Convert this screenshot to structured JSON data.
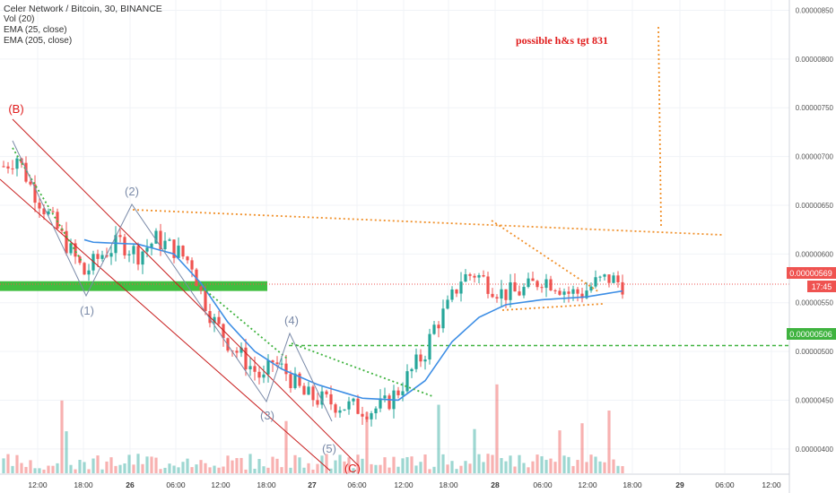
{
  "legend": {
    "title": "Celer Network / Bitcoin, 30, BINANCE",
    "vol": "Vol (20)",
    "ema_short": "EMA (25, close)",
    "ema_long": "EMA (205, close)"
  },
  "annotation_text": "possible h&s tgt 831",
  "price_badge": "0.00000569",
  "countdown_badge": "17:45",
  "support_badge": "0.00000506",
  "colors": {
    "up": "#26a69a",
    "down": "#ef5350",
    "ema": "#3d8ee5",
    "orange": "#f0902a",
    "green_dash": "#3fb33f",
    "red_line": "#c81e1e",
    "wave": "#7a8aa8",
    "zone": "#1fb31f",
    "annotation": "#e01b1b"
  },
  "chart_data": {
    "type": "candlestick",
    "title": "Celer Network / Bitcoin, 30, BINANCE",
    "y_ticks": [
      "0.00000850",
      "0.00000800",
      "0.00000750",
      "0.00000700",
      "0.00000650",
      "0.00000600",
      "0.00000550",
      "0.00000500",
      "0.00000450",
      "0.00000400"
    ],
    "x_ticks": [
      "12:00",
      "18:00",
      "26",
      "06:00",
      "12:00",
      "18:00",
      "27",
      "06:00",
      "12:00",
      "18:00",
      "28",
      "06:00",
      "12:00",
      "18:00",
      "29",
      "06:00",
      "12:00"
    ],
    "ylim": [
      3.75e-06,
      8.55e-06
    ],
    "last_price": 5.69e-06,
    "support_level": 5.06e-06,
    "resistance_zone": [
      5.62e-06,
      5.72e-06
    ],
    "ohlc_anchors": [
      [
        0,
        6.9e-06
      ],
      [
        3,
        7e-06
      ],
      [
        6,
        6.7e-06
      ],
      [
        10,
        6.4e-06
      ],
      [
        14,
        6.1e-06
      ],
      [
        18,
        5.8e-06
      ],
      [
        22,
        6e-06
      ],
      [
        26,
        6.12e-06
      ],
      [
        30,
        6e-06
      ],
      [
        34,
        6.15e-06
      ],
      [
        38,
        6.05e-06
      ],
      [
        42,
        5.9e-06
      ],
      [
        44,
        5.6e-06
      ],
      [
        47,
        5.3e-06
      ],
      [
        50,
        5.1e-06
      ],
      [
        54,
        4.9e-06
      ],
      [
        58,
        4.7e-06
      ],
      [
        60,
        4.9e-06
      ],
      [
        63,
        4.78e-06
      ],
      [
        67,
        4.55e-06
      ],
      [
        71,
        4.5e-06
      ],
      [
        75,
        4.45e-06
      ],
      [
        79,
        4.42e-06
      ],
      [
        82,
        4.4e-06
      ],
      [
        85,
        4.45e-06
      ],
      [
        88,
        4.6e-06
      ],
      [
        91,
        4.8e-06
      ],
      [
        94,
        5e-06
      ],
      [
        96,
        5.25e-06
      ],
      [
        99,
        5.45e-06
      ],
      [
        102,
        5.75e-06
      ],
      [
        105,
        5.8e-06
      ],
      [
        108,
        5.7e-06
      ],
      [
        111,
        5.6e-06
      ],
      [
        114,
        5.6e-06
      ],
      [
        117,
        5.65e-06
      ],
      [
        120,
        5.75e-06
      ],
      [
        123,
        5.7e-06
      ],
      [
        126,
        5.6e-06
      ],
      [
        129,
        5.6e-06
      ],
      [
        132,
        5.7e-06
      ],
      [
        135,
        5.75e-06
      ],
      [
        138,
        5.69e-06
      ]
    ],
    "ema_25": [
      [
        0,
        6.4e-06
      ],
      [
        10,
        6.25e-06
      ],
      [
        20,
        6.12e-06
      ],
      [
        30,
        6.1e-06
      ],
      [
        38,
        6e-06
      ],
      [
        44,
        5.7e-06
      ],
      [
        50,
        5.3e-06
      ],
      [
        56,
        5e-06
      ],
      [
        62,
        4.82e-06
      ],
      [
        70,
        4.66e-06
      ],
      [
        80,
        4.52e-06
      ],
      [
        88,
        4.5e-06
      ],
      [
        94,
        4.7e-06
      ],
      [
        100,
        5.1e-06
      ],
      [
        106,
        5.35e-06
      ],
      [
        112,
        5.48e-06
      ],
      [
        120,
        5.53e-06
      ],
      [
        130,
        5.56e-06
      ],
      [
        138,
        5.62e-06
      ]
    ],
    "wave_labels": [
      "(B)",
      "(1)",
      "(2)",
      "(3)",
      "(4)",
      "(5)",
      "(C)"
    ]
  }
}
